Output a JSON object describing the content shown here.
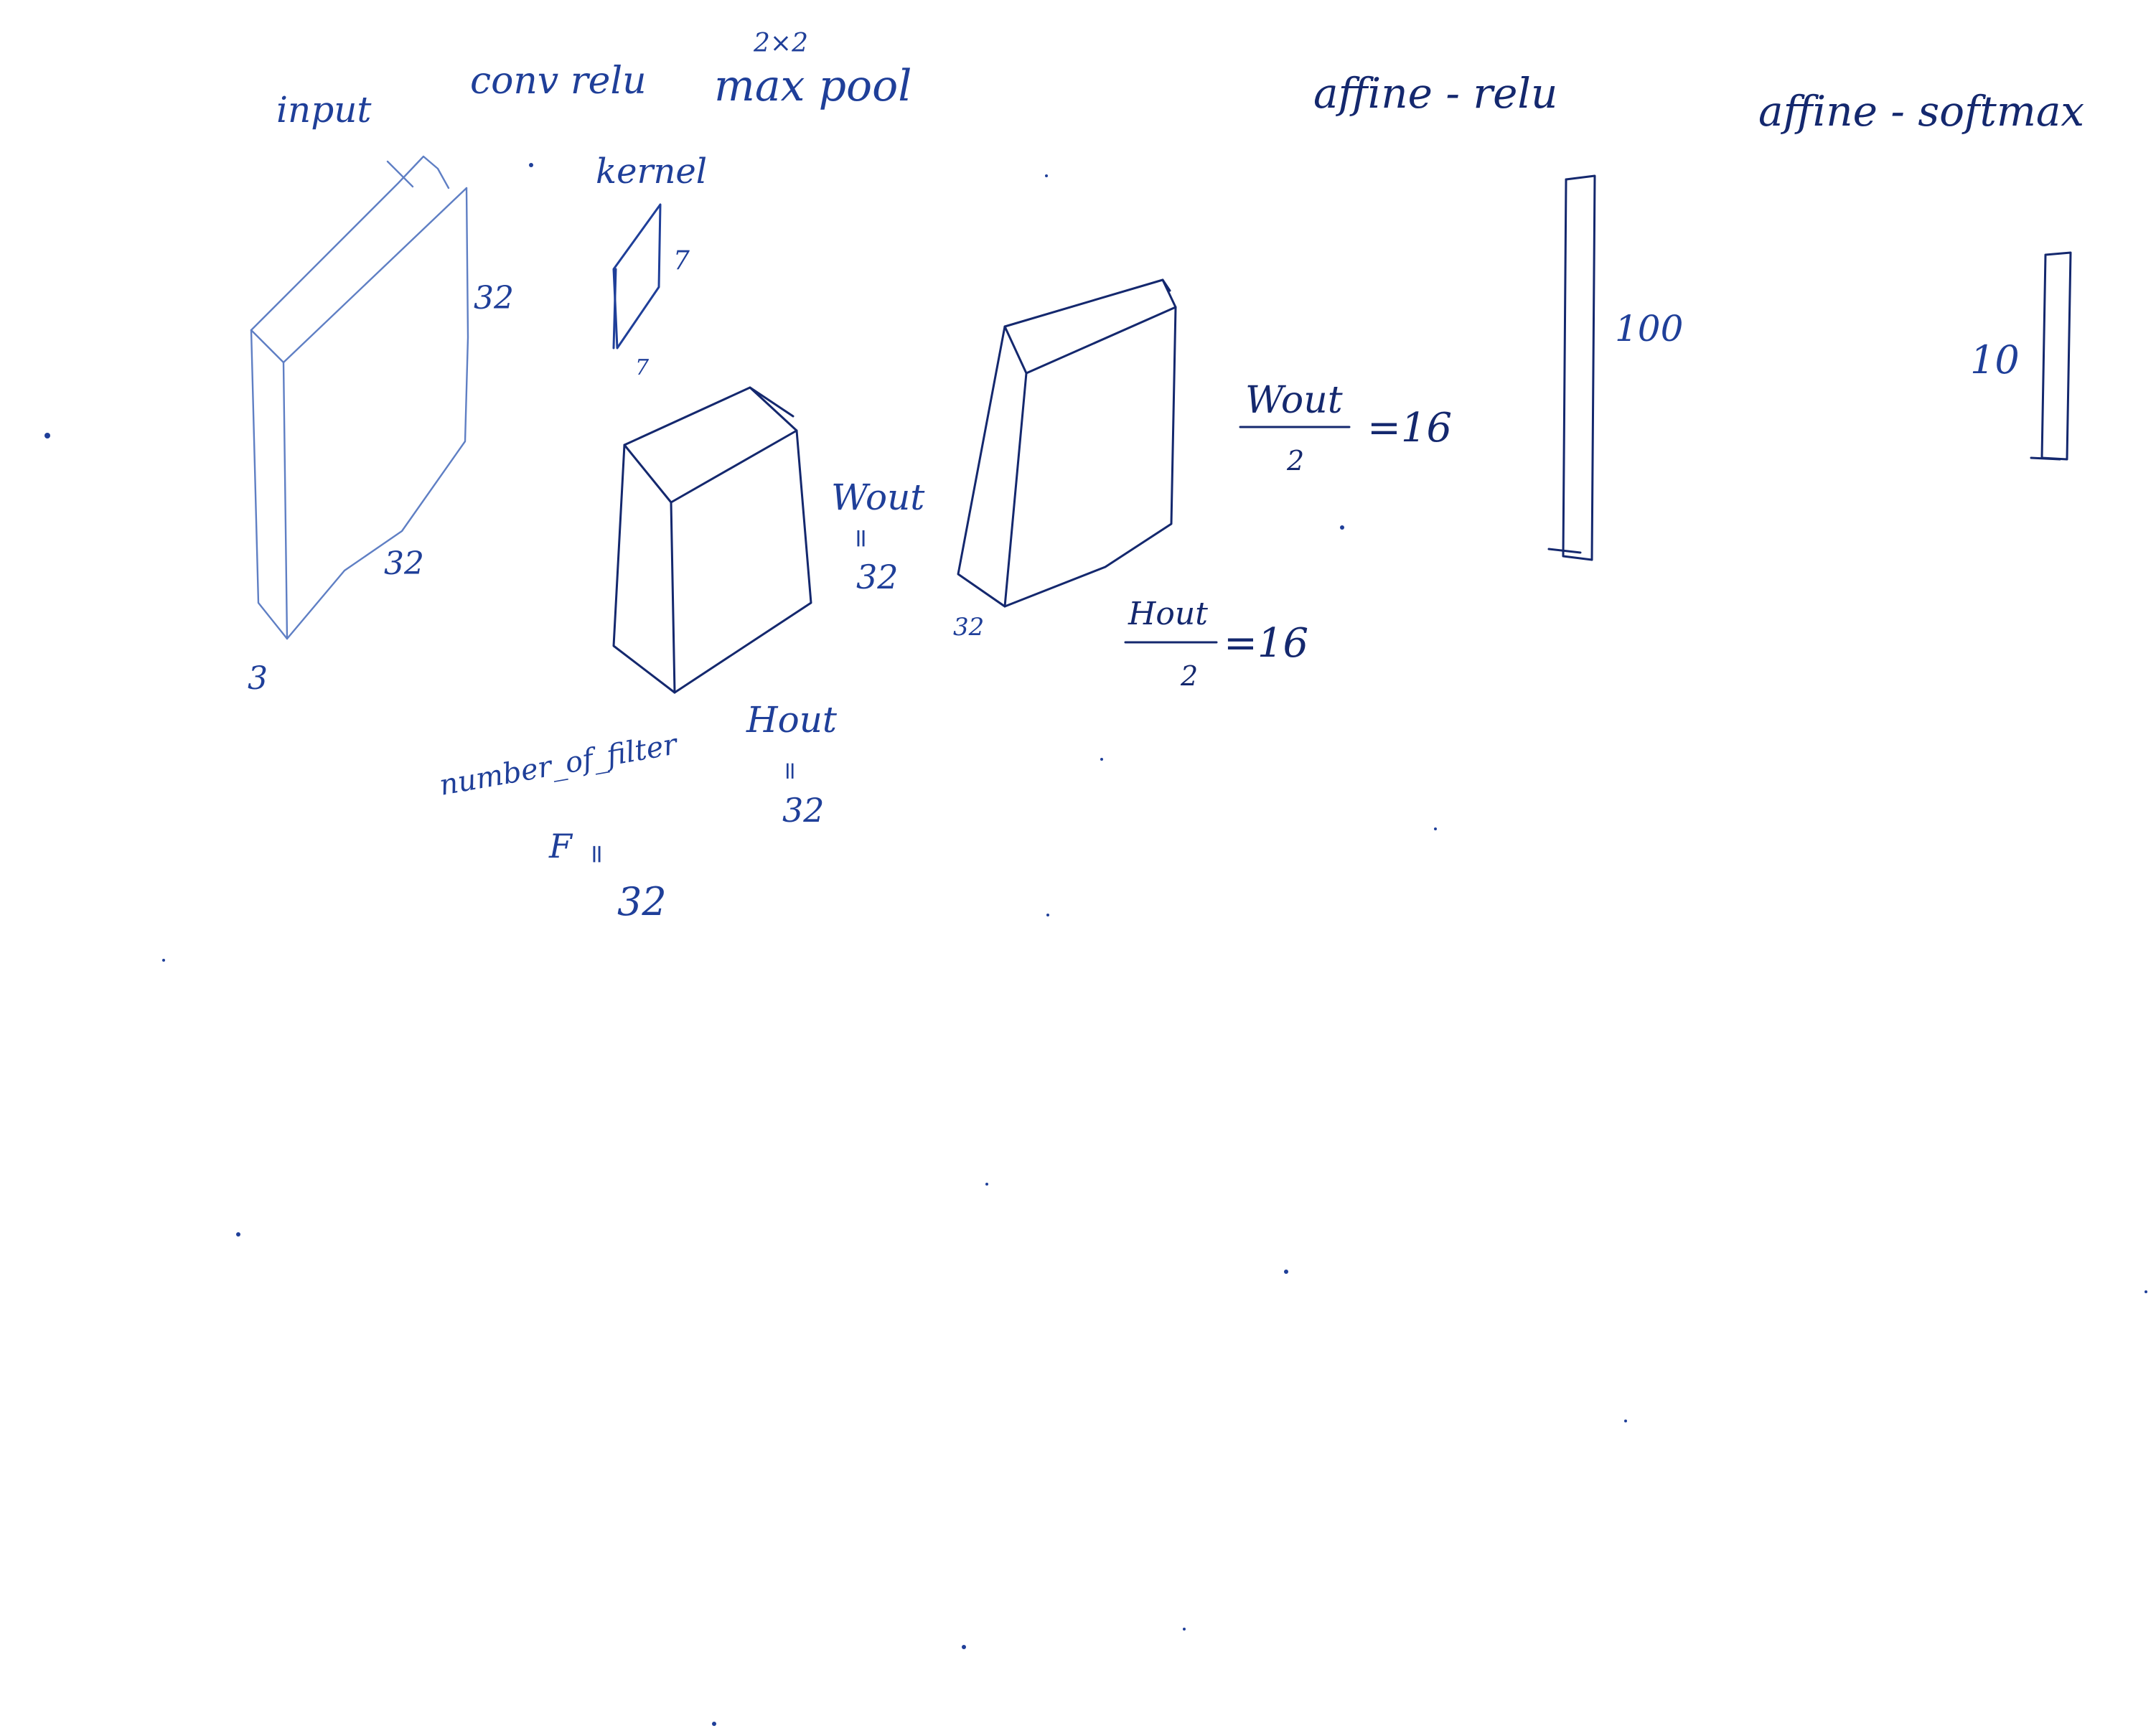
{
  "labels": {
    "input": "input",
    "conv_relu": "conv relu",
    "pool_size": "2×2",
    "max_pool": "max pool",
    "affine_relu": "affine - relu",
    "affine_softmax": "affine - softmax",
    "kernel": "kernel",
    "kernel_h": "7",
    "kernel_w": "7",
    "input_height": "32",
    "input_width": "32",
    "input_depth": "3",
    "w_out": "Wout",
    "w_out_eq": "=",
    "w_out_value": "32",
    "h_out": "Hout",
    "h_out_eq": "=",
    "h_out_value": "32",
    "num_filter": "number_of_filter",
    "f_symbol": "F",
    "f_eq": "=",
    "f_value": "32",
    "pool_depth": "32",
    "pool_w_numer": "Wout",
    "pool_w_denom": "2",
    "pool_w_result": "=16",
    "pool_h_numer": "Hout",
    "pool_h_denom": "2",
    "pool_h_result": "=16",
    "fc1_size": "100",
    "fc2_size": "10"
  },
  "colors": {
    "ink": "#1f3f99",
    "ink_dark": "#14286e",
    "paper": "#ffffff"
  }
}
